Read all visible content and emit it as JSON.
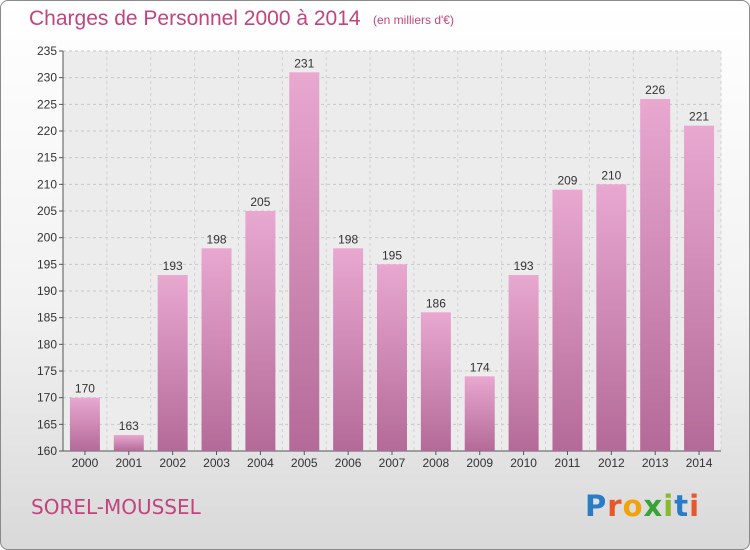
{
  "header": {
    "title": "Charges de Personnel 2000 à 2014",
    "subtitle": "(en milliers d'€)"
  },
  "footer": {
    "commune": "SOREL-MOUSSEL",
    "logo": "Proxiti"
  },
  "colors": {
    "accent": "#c2447e",
    "bar_top": "#e8a8d0",
    "bar_bottom": "#b46a98"
  },
  "chart_data": {
    "type": "bar",
    "title": "Charges de Personnel 2000 à 2014",
    "subtitle": "(en milliers d'€)",
    "categories": [
      "2000",
      "2001",
      "2002",
      "2003",
      "2004",
      "2005",
      "2006",
      "2007",
      "2008",
      "2009",
      "2010",
      "2011",
      "2012",
      "2013",
      "2014"
    ],
    "values": [
      170,
      163,
      193,
      198,
      205,
      231,
      198,
      195,
      186,
      174,
      193,
      209,
      210,
      226,
      221
    ],
    "data_labels": [
      "170",
      "163",
      "193",
      "198",
      "205",
      "231",
      "198",
      "195",
      "186",
      "174",
      "193",
      "209",
      "210",
      "226",
      "221"
    ],
    "ylim": [
      160,
      235
    ],
    "yticks": [
      "160",
      "165",
      "170",
      "175",
      "180",
      "185",
      "190",
      "195",
      "200",
      "205",
      "210",
      "215",
      "220",
      "225",
      "230",
      "235"
    ],
    "grid": true,
    "xlabel": "",
    "ylabel": ""
  }
}
